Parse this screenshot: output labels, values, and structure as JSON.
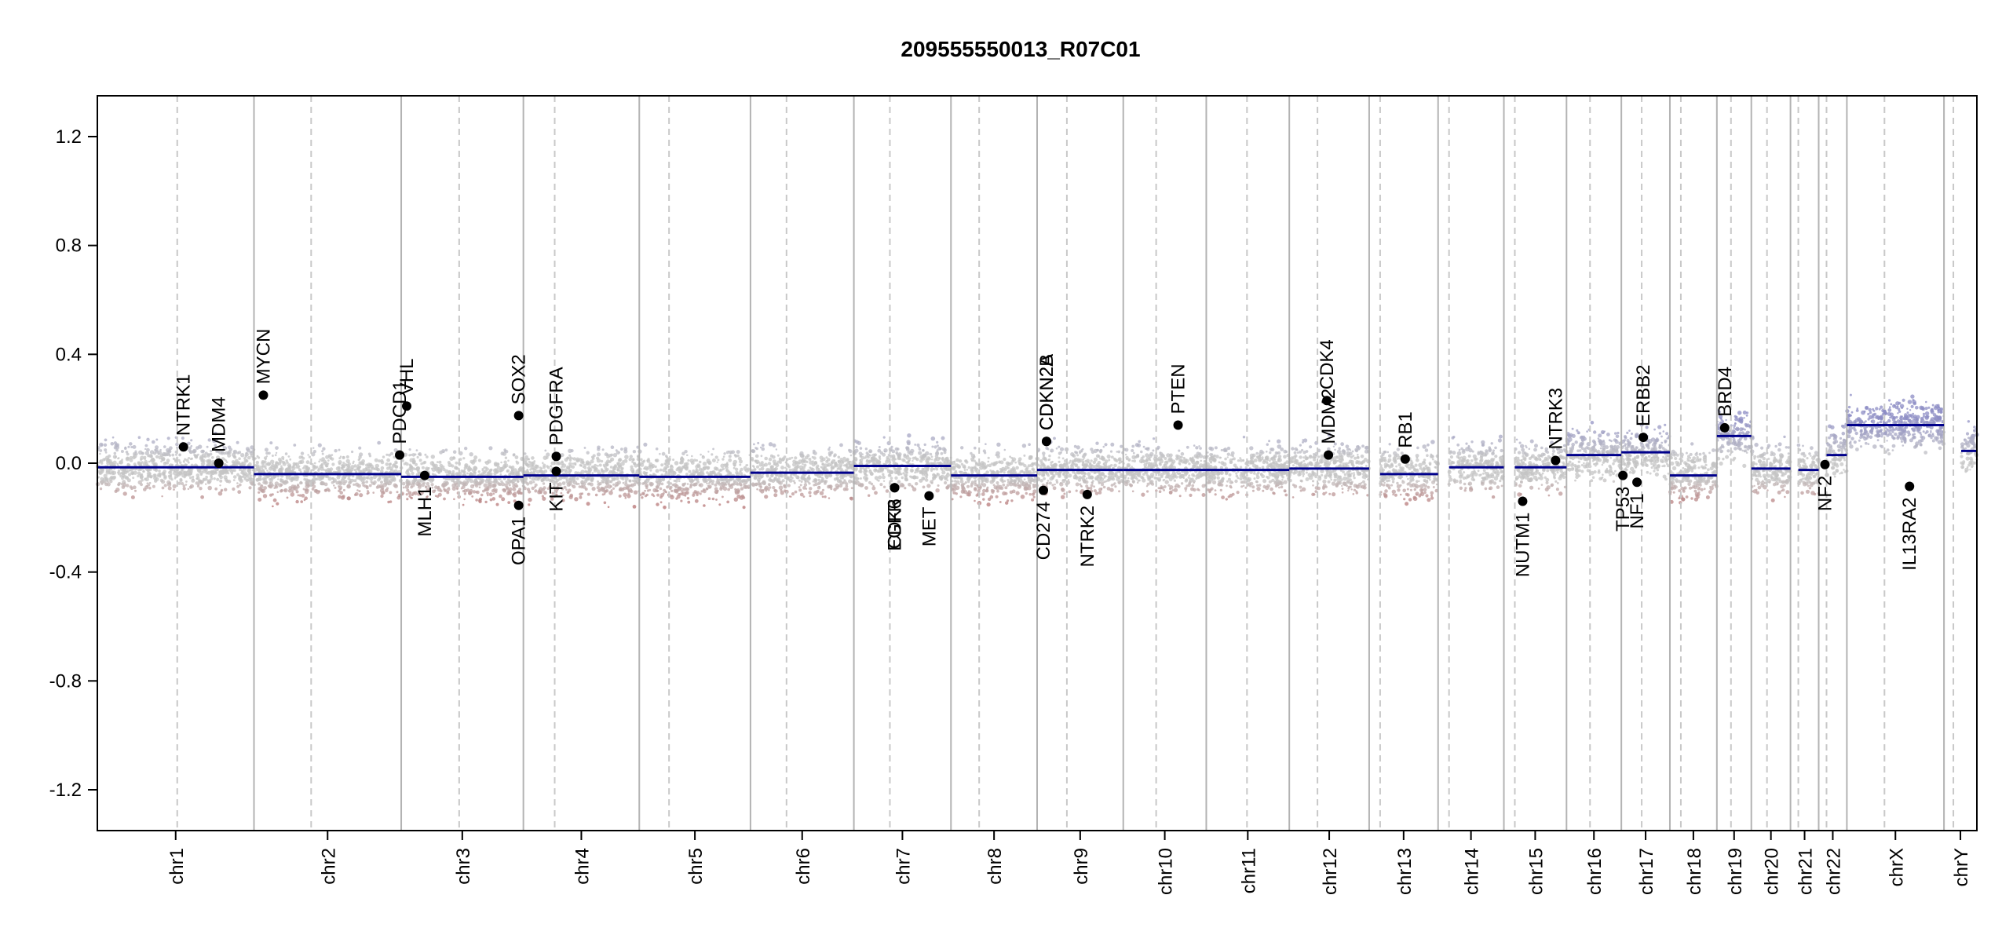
{
  "chart_data": {
    "type": "scatter",
    "title": "209555550013_R07C01",
    "xlabel": "",
    "ylabel": "",
    "ylim": [
      -1.35,
      1.35
    ],
    "yticks": [
      -1.2,
      -0.8,
      -0.4,
      0.0,
      0.4,
      0.8,
      1.2
    ],
    "ytick_labels": [
      "-1.2",
      "-0.8",
      "-0.4",
      "0.0",
      "0.4",
      "0.8",
      "1.2"
    ],
    "grid": false,
    "legend": "none",
    "colors": {
      "gain": "#8c8cc4",
      "loss": "#b04a4a",
      "neutral": "#c4c4c4",
      "segment": "#00008b",
      "chrom_boundary": "#b3b3b3",
      "centromere": "#c8c8c8",
      "gene_marker": "#000000"
    },
    "chromosomes": [
      {
        "name": "chr1",
        "start": 0,
        "end": 1.0,
        "centromere": 0.51,
        "segments": [
          {
            "start": 0,
            "end": 1.0,
            "value": -0.015
          }
        ]
      },
      {
        "name": "chr2",
        "start": 1.0,
        "end": 1.94,
        "centromere": 1.365,
        "segments": [
          {
            "start": 1.0,
            "end": 1.94,
            "value": -0.04
          }
        ]
      },
      {
        "name": "chr3",
        "start": 1.94,
        "end": 2.72,
        "centromere": 2.31,
        "segments": [
          {
            "start": 1.94,
            "end": 2.72,
            "value": -0.05
          }
        ]
      },
      {
        "name": "chr4",
        "start": 2.72,
        "end": 3.46,
        "centromere": 2.92,
        "segments": [
          {
            "start": 2.72,
            "end": 3.46,
            "value": -0.045
          }
        ]
      },
      {
        "name": "chr5",
        "start": 3.46,
        "end": 4.17,
        "centromere": 3.65,
        "segments": [
          {
            "start": 3.46,
            "end": 4.17,
            "value": -0.05
          }
        ]
      },
      {
        "name": "chr6",
        "start": 4.17,
        "end": 4.83,
        "centromere": 4.4,
        "segments": [
          {
            "start": 4.17,
            "end": 4.83,
            "value": -0.035
          }
        ]
      },
      {
        "name": "chr7",
        "start": 4.83,
        "end": 5.45,
        "centromere": 5.06,
        "segments": [
          {
            "start": 4.83,
            "end": 5.45,
            "value": -0.01
          }
        ]
      },
      {
        "name": "chr8",
        "start": 5.45,
        "end": 6.0,
        "centromere": 5.63,
        "segments": [
          {
            "start": 5.45,
            "end": 6.0,
            "value": -0.045
          }
        ]
      },
      {
        "name": "chr9",
        "start": 6.0,
        "end": 6.55,
        "centromere": 6.19,
        "segments": [
          {
            "start": 6.0,
            "end": 6.55,
            "value": -0.025
          }
        ]
      },
      {
        "name": "chr10",
        "start": 6.55,
        "end": 7.08,
        "centromere": 6.76,
        "segments": [
          {
            "start": 6.55,
            "end": 7.08,
            "value": -0.025
          }
        ]
      },
      {
        "name": "chr11",
        "start": 7.08,
        "end": 7.61,
        "centromere": 7.34,
        "segments": [
          {
            "start": 7.08,
            "end": 7.61,
            "value": -0.025
          }
        ]
      },
      {
        "name": "chr12",
        "start": 7.61,
        "end": 8.12,
        "centromere": 7.79,
        "segments": [
          {
            "start": 7.61,
            "end": 8.12,
            "value": -0.02
          }
        ]
      },
      {
        "name": "chr13",
        "start": 8.12,
        "end": 8.56,
        "centromere": 8.19,
        "segments": [
          {
            "start": 8.19,
            "end": 8.56,
            "value": -0.04
          }
        ]
      },
      {
        "name": "chr14",
        "start": 8.56,
        "end": 8.98,
        "centromere": 8.63,
        "segments": [
          {
            "start": 8.63,
            "end": 8.98,
            "value": -0.015
          }
        ]
      },
      {
        "name": "chr15",
        "start": 8.98,
        "end": 9.38,
        "centromere": 9.05,
        "segments": [
          {
            "start": 9.05,
            "end": 9.38,
            "value": -0.015
          }
        ]
      },
      {
        "name": "chr16",
        "start": 9.38,
        "end": 9.73,
        "centromere": 9.53,
        "segments": [
          {
            "start": 9.38,
            "end": 9.73,
            "value": 0.03
          }
        ]
      },
      {
        "name": "chr17",
        "start": 9.73,
        "end": 10.04,
        "centromere": 9.86,
        "segments": [
          {
            "start": 9.73,
            "end": 10.04,
            "value": 0.04
          }
        ]
      },
      {
        "name": "chr18",
        "start": 10.04,
        "end": 10.34,
        "centromere": 10.11,
        "segments": [
          {
            "start": 10.04,
            "end": 10.34,
            "value": -0.045
          }
        ]
      },
      {
        "name": "chr19",
        "start": 10.34,
        "end": 10.56,
        "centromere": 10.43,
        "segments": [
          {
            "start": 10.34,
            "end": 10.56,
            "value": 0.1
          }
        ]
      },
      {
        "name": "chr20",
        "start": 10.56,
        "end": 10.81,
        "centromere": 10.66,
        "segments": [
          {
            "start": 10.56,
            "end": 10.81,
            "value": -0.02
          }
        ]
      },
      {
        "name": "chr21",
        "start": 10.81,
        "end": 10.99,
        "centromere": 10.86,
        "segments": [
          {
            "start": 10.86,
            "end": 10.99,
            "value": -0.025
          }
        ]
      },
      {
        "name": "chr22",
        "start": 10.99,
        "end": 11.17,
        "centromere": 11.04,
        "segments": [
          {
            "start": 11.04,
            "end": 11.17,
            "value": 0.03
          }
        ]
      },
      {
        "name": "chrX",
        "start": 11.17,
        "end": 11.79,
        "centromere": 11.41,
        "segments": [
          {
            "start": 11.17,
            "end": 11.79,
            "value": 0.14
          }
        ]
      },
      {
        "name": "chrY",
        "start": 11.79,
        "end": 12.0,
        "centromere": 11.85,
        "segments": [
          {
            "start": 11.9,
            "end": 12.0,
            "value": 0.045
          }
        ]
      }
    ],
    "genes": [
      {
        "name": "NTRK1",
        "x": 0.55,
        "y": 0.06,
        "label": "above"
      },
      {
        "name": "MDM4",
        "x": 0.775,
        "y": 0.0,
        "label": "above"
      },
      {
        "name": "MYCN",
        "x": 1.06,
        "y": 0.25,
        "label": "above"
      },
      {
        "name": "PDCD1",
        "x": 1.93,
        "y": 0.03,
        "label": "above"
      },
      {
        "name": "VHL",
        "x": 1.975,
        "y": 0.21,
        "label": "above"
      },
      {
        "name": "MLH1",
        "x": 2.09,
        "y": -0.045,
        "label": "below"
      },
      {
        "name": "SOX2",
        "x": 2.69,
        "y": 0.175,
        "label": "above"
      },
      {
        "name": "OPA1",
        "x": 2.69,
        "y": -0.155,
        "label": "below"
      },
      {
        "name": "PDGFRA",
        "x": 2.93,
        "y": 0.025,
        "label": "above"
      },
      {
        "name": "KIT",
        "x": 2.93,
        "y": -0.03,
        "label": "below"
      },
      {
        "name": "EGFR",
        "x": 5.09,
        "y": -0.09,
        "label": "below"
      },
      {
        "name": "CDK6",
        "x": 5.09,
        "y": -0.09,
        "label": "below"
      },
      {
        "name": "MET",
        "x": 5.31,
        "y": -0.12,
        "label": "below"
      },
      {
        "name": "CD274",
        "x": 6.04,
        "y": -0.1,
        "label": "below"
      },
      {
        "name": "CDKN2A",
        "x": 6.06,
        "y": 0.08,
        "label": "above"
      },
      {
        "name": "CDKN2B",
        "x": 6.06,
        "y": 0.08,
        "label": "above"
      },
      {
        "name": "NTRK2",
        "x": 6.32,
        "y": -0.115,
        "label": "below"
      },
      {
        "name": "PTEN",
        "x": 6.9,
        "y": 0.14,
        "label": "above"
      },
      {
        "name": "CDK4",
        "x": 7.85,
        "y": 0.23,
        "label": "above"
      },
      {
        "name": "MDM2",
        "x": 7.86,
        "y": 0.03,
        "label": "above"
      },
      {
        "name": "RB1",
        "x": 8.35,
        "y": 0.015,
        "label": "above"
      },
      {
        "name": "NUTM1",
        "x": 9.1,
        "y": -0.14,
        "label": "below"
      },
      {
        "name": "NTRK3",
        "x": 9.31,
        "y": 0.01,
        "label": "above"
      },
      {
        "name": "TP53",
        "x": 9.74,
        "y": -0.045,
        "label": "below"
      },
      {
        "name": "NF1",
        "x": 9.83,
        "y": -0.07,
        "label": "below"
      },
      {
        "name": "ERBB2",
        "x": 9.87,
        "y": 0.095,
        "label": "above"
      },
      {
        "name": "BRD4",
        "x": 10.39,
        "y": 0.13,
        "label": "above"
      },
      {
        "name": "NF2",
        "x": 11.03,
        "y": -0.005,
        "label": "below"
      },
      {
        "name": "IL13RA2",
        "x": 11.57,
        "y": -0.085,
        "label": "below"
      }
    ]
  }
}
